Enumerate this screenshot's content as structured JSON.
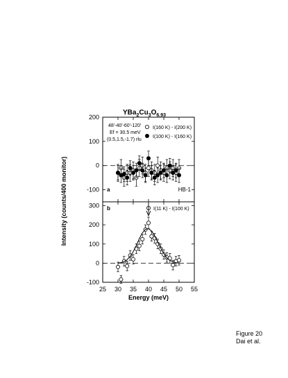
{
  "chart_data": [
    {
      "panel": "a",
      "type": "scatter",
      "title_parts": {
        "base": "YBa",
        "sub1": "2",
        "mid": "Cu",
        "sub2": "3",
        "end": "O",
        "sub3": "6.93"
      },
      "params": [
        "48'-40'-60'-120'",
        "Ef = 30.5 meV",
        "(0.5,1.5,-1.7) rlu"
      ],
      "label": "HB-1",
      "ylabel": "Intensity (counts/400 monitor)",
      "ylim": [
        -150,
        200
      ],
      "yticks": [
        -100,
        0,
        100,
        200
      ],
      "xlim": [
        25,
        55
      ],
      "grid": false,
      "legend_position": "top-right",
      "series": [
        {
          "name": "I(160 K) - I(200 K)",
          "marker": "open-circle",
          "x": [
            30,
            31,
            32,
            33,
            34,
            35,
            36,
            37,
            38,
            39,
            40,
            41,
            42,
            43,
            44,
            45,
            46,
            47,
            48,
            49,
            50
          ],
          "y": [
            -30,
            -10,
            -50,
            -30,
            -30,
            -20,
            -50,
            -10,
            0,
            -30,
            -10,
            -20,
            -30,
            0,
            -20,
            -30,
            -10,
            -20,
            -10,
            -30,
            -10
          ],
          "err": [
            35,
            35,
            35,
            35,
            35,
            35,
            35,
            35,
            35,
            35,
            35,
            35,
            35,
            35,
            35,
            35,
            35,
            35,
            35,
            35,
            35
          ]
        },
        {
          "name": "I(100 K) - I(160 K)",
          "marker": "filled-circle",
          "x": [
            30,
            31,
            32,
            33,
            34,
            35,
            36,
            37,
            38,
            39,
            40,
            41,
            42,
            43,
            44,
            45,
            46,
            47,
            48,
            49,
            50
          ],
          "y": [
            -30,
            -40,
            -35,
            -50,
            -10,
            -30,
            -20,
            10,
            -20,
            -40,
            30,
            -30,
            -50,
            -40,
            -30,
            -20,
            -40,
            0,
            -30,
            -20,
            -40
          ],
          "err": [
            30,
            30,
            30,
            30,
            30,
            30,
            30,
            30,
            30,
            30,
            30,
            30,
            30,
            30,
            30,
            30,
            30,
            30,
            30,
            30,
            30
          ]
        }
      ]
    },
    {
      "panel": "b",
      "type": "scatter",
      "xlabel": "Energy (meV)",
      "xlim": [
        25,
        55
      ],
      "xticks": [
        25,
        30,
        35,
        40,
        45,
        50,
        55
      ],
      "ylim": [
        -100,
        320
      ],
      "yticks": [
        -100,
        0,
        100,
        200,
        300
      ],
      "grid": false,
      "legend_position": "top-right",
      "arrow_at_x": 40,
      "series": [
        {
          "name": "I(11 K) - I(100 K)",
          "marker": "open-circle",
          "x": [
            30,
            31,
            32,
            33,
            34,
            35,
            36,
            37,
            38,
            39,
            40,
            41,
            42,
            43,
            44,
            45,
            46,
            47,
            48,
            49,
            50
          ],
          "y": [
            -20,
            -85,
            10,
            -15,
            40,
            20,
            75,
            90,
            125,
            175,
            210,
            140,
            130,
            100,
            75,
            45,
            30,
            25,
            -10,
            10,
            15
          ],
          "err": [
            25,
            20,
            25,
            25,
            25,
            25,
            25,
            25,
            25,
            25,
            30,
            25,
            25,
            25,
            25,
            25,
            25,
            25,
            25,
            25,
            25
          ]
        },
        {
          "name": "fit",
          "type": "line",
          "x": [
            30,
            31,
            32,
            33,
            34,
            35,
            36,
            37,
            38,
            39,
            40,
            41,
            42,
            43,
            44,
            45,
            46,
            47,
            48,
            49,
            50
          ],
          "y": [
            0,
            3,
            8,
            18,
            35,
            60,
            92,
            128,
            158,
            176,
            180,
            168,
            142,
            110,
            78,
            50,
            28,
            14,
            6,
            2,
            0
          ]
        }
      ]
    }
  ],
  "caption": {
    "line1": "Figure 20",
    "line2": "Dai et al."
  }
}
